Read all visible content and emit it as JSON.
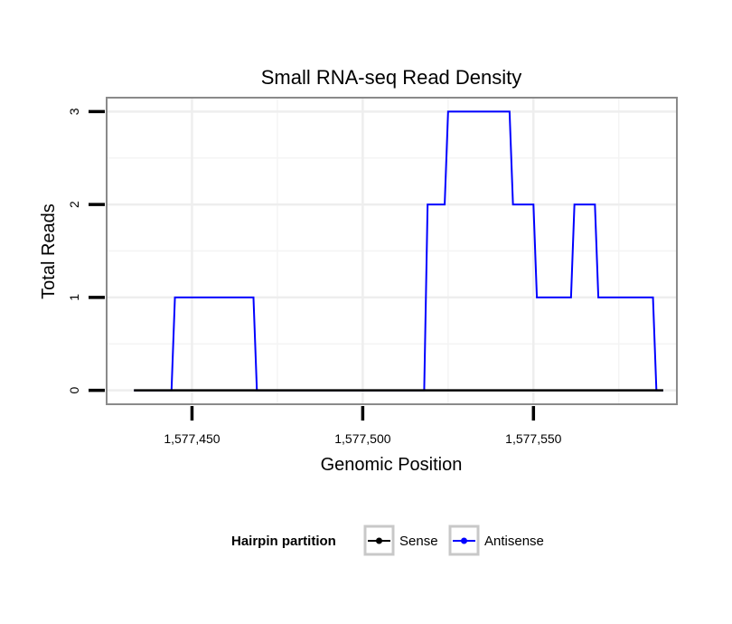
{
  "chart_data": {
    "type": "line",
    "title": "Small RNA-seq Read Density",
    "xlabel": "Genomic Position",
    "ylabel": "Total Reads",
    "xlim": [
      1577425,
      1577592
    ],
    "ylim": [
      -0.15,
      3.15
    ],
    "xticks": [
      1577450,
      1577500,
      1577550
    ],
    "xtick_labels": [
      "1,577,450",
      "1,577,500",
      "1,577,550"
    ],
    "yticks": [
      0,
      1,
      2,
      3
    ],
    "ytick_labels": [
      "0",
      "1",
      "2",
      "3"
    ],
    "grid": true,
    "legend": {
      "title": "Hairpin partition",
      "placement": "bottom"
    },
    "series": [
      {
        "name": "Sense",
        "color": "#000000",
        "x": [
          1577433,
          1577588
        ],
        "y": [
          0,
          0
        ]
      },
      {
        "name": "Antisense",
        "color": "#0000ff",
        "x": [
          1577433,
          1577444,
          1577445,
          1577468,
          1577469,
          1577518,
          1577519,
          1577524,
          1577525,
          1577543,
          1577544,
          1577550,
          1577551,
          1577561,
          1577562,
          1577568,
          1577569,
          1577585,
          1577586,
          1577588
        ],
        "y": [
          0,
          0,
          1,
          1,
          0,
          0,
          2,
          2,
          3,
          3,
          2,
          2,
          1,
          1,
          2,
          2,
          1,
          1,
          0,
          0
        ]
      }
    ]
  }
}
